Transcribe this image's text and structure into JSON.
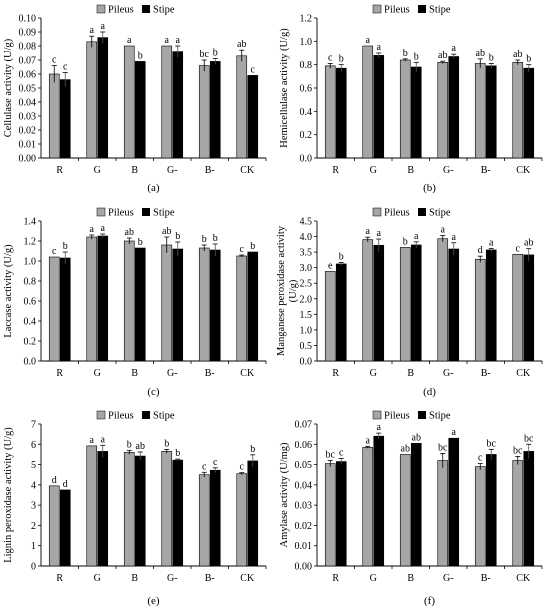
{
  "legend": {
    "pileus": "Pileus",
    "stipe": "Stipe"
  },
  "colors": {
    "pileus": "#a6a6a6",
    "stipe": "#000000",
    "axis": "#000000"
  },
  "chart_data": [
    {
      "type": "bar",
      "panel": "(a)",
      "ylabel": "Cellulase activity (U/g)",
      "ylim": [
        0,
        0.1
      ],
      "ytick_step": 0.01,
      "ytick_decimals": 2,
      "categories": [
        "R",
        "G",
        "B",
        "G-",
        "B-",
        "CK"
      ],
      "series": [
        {
          "name": "Pileus",
          "values": [
            0.06,
            0.083,
            0.08,
            0.08,
            0.066,
            0.073
          ],
          "errors": [
            0.006,
            0.004,
            0.0,
            0.0,
            0.004,
            0.004
          ],
          "letters": [
            "c",
            "a",
            "a",
            "a",
            "bc",
            "ab"
          ]
        },
        {
          "name": "Stipe",
          "values": [
            0.056,
            0.086,
            0.069,
            0.076,
            0.069,
            0.059
          ],
          "errors": [
            0.005,
            0.004,
            0.0,
            0.004,
            0.002,
            0.0
          ],
          "letters": [
            "c",
            "a",
            "b",
            "a",
            "b",
            "c"
          ]
        }
      ]
    },
    {
      "type": "bar",
      "panel": "(b)",
      "ylabel": "Hemicellulase activity (U/g)",
      "ylim": [
        0,
        1.2
      ],
      "ytick_step": 0.2,
      "ytick_decimals": 1,
      "categories": [
        "R",
        "G",
        "B",
        "G-",
        "B-",
        "CK"
      ],
      "series": [
        {
          "name": "Pileus",
          "values": [
            0.79,
            0.96,
            0.84,
            0.82,
            0.81,
            0.82
          ],
          "errors": [
            0.02,
            0.0,
            0.01,
            0.01,
            0.04,
            0.02
          ],
          "letters": [
            "c",
            "a",
            "b",
            "ab",
            "ab",
            "ab"
          ]
        },
        {
          "name": "Stipe",
          "values": [
            0.77,
            0.88,
            0.78,
            0.87,
            0.79,
            0.77
          ],
          "errors": [
            0.03,
            0.02,
            0.04,
            0.02,
            0.02,
            0.03
          ],
          "letters": [
            "b",
            "a",
            "b",
            "a",
            "b",
            "b"
          ]
        }
      ]
    },
    {
      "type": "bar",
      "panel": "(c)",
      "ylabel": "Laccase activity (U/g)",
      "ylim": [
        0,
        1.4
      ],
      "ytick_step": 0.2,
      "ytick_decimals": 1,
      "categories": [
        "R",
        "G",
        "B",
        "G-",
        "B-",
        "CK"
      ],
      "series": [
        {
          "name": "Pileus",
          "values": [
            1.04,
            1.24,
            1.2,
            1.16,
            1.13,
            1.05
          ],
          "errors": [
            0.0,
            0.02,
            0.03,
            0.08,
            0.03,
            0.01
          ],
          "letters": [
            "c",
            "a",
            "ab",
            "ab",
            "b",
            "c"
          ]
        },
        {
          "name": "Stipe",
          "values": [
            1.03,
            1.25,
            1.13,
            1.12,
            1.11,
            1.09
          ],
          "errors": [
            0.06,
            0.02,
            0.0,
            0.07,
            0.06,
            0.0
          ],
          "letters": [
            "b",
            "a",
            "b",
            "b",
            "b",
            "b"
          ]
        }
      ]
    },
    {
      "type": "bar",
      "panel": "(d)",
      "ylabel": [
        "Manganese peroxidase activity",
        "(U/g)"
      ],
      "ylim": [
        0,
        4.5
      ],
      "ytick_step": 0.5,
      "ytick_decimals": 1,
      "categories": [
        "R",
        "G",
        "B",
        "G-",
        "B-",
        "CK"
      ],
      "series": [
        {
          "name": "Pileus",
          "values": [
            2.88,
            3.9,
            3.65,
            3.93,
            3.27,
            3.43
          ],
          "errors": [
            0.0,
            0.08,
            0.0,
            0.1,
            0.1,
            0.0
          ],
          "letters": [
            "e",
            "a",
            "b",
            "a",
            "d",
            "c"
          ]
        },
        {
          "name": "Stipe",
          "values": [
            3.12,
            3.72,
            3.73,
            3.6,
            3.57,
            3.41
          ],
          "errors": [
            0.05,
            0.2,
            0.1,
            0.2,
            0.05,
            0.2
          ],
          "letters": [
            "b",
            "a",
            "a",
            "a",
            "a",
            "ab"
          ]
        }
      ]
    },
    {
      "type": "bar",
      "panel": "(e)",
      "ylabel": "Lignin peroxidase activity (U/g)",
      "ylim": [
        0,
        7
      ],
      "ytick_step": 1,
      "ytick_decimals": 0,
      "categories": [
        "R",
        "G",
        "B",
        "G-",
        "B-",
        "CK"
      ],
      "series": [
        {
          "name": "Pileus",
          "values": [
            3.95,
            5.92,
            5.6,
            5.65,
            4.5,
            4.55
          ],
          "errors": [
            0.0,
            0.0,
            0.1,
            0.1,
            0.12,
            0.05
          ],
          "letters": [
            "d",
            "a",
            "b",
            "b",
            "c",
            "c"
          ]
        },
        {
          "name": "Stipe",
          "values": [
            3.75,
            5.65,
            5.42,
            5.22,
            4.72,
            5.18
          ],
          "errors": [
            0.0,
            0.3,
            0.2,
            0.05,
            0.12,
            0.3
          ],
          "letters": [
            "d",
            "a",
            "ab",
            "b",
            "c",
            "b"
          ]
        }
      ]
    },
    {
      "type": "bar",
      "panel": "(f)",
      "ylabel": "Amylase activity (U/mg)",
      "ylim": [
        0,
        0.07
      ],
      "ytick_step": 0.01,
      "ytick_decimals": 2,
      "categories": [
        "R",
        "G",
        "B",
        "G-",
        "B-",
        "CK"
      ],
      "series": [
        {
          "name": "Pileus",
          "values": [
            0.0505,
            0.0585,
            0.055,
            0.052,
            0.049,
            0.052
          ],
          "errors": [
            0.0015,
            0.0005,
            0.0,
            0.0035,
            0.0015,
            0.002
          ],
          "letters": [
            "bc",
            "a",
            "ab",
            "bc",
            "c",
            "bc"
          ]
        },
        {
          "name": "Stipe",
          "values": [
            0.0515,
            0.064,
            0.0605,
            0.063,
            0.055,
            0.0565
          ],
          "errors": [
            0.0015,
            0.0015,
            0.0,
            0.0,
            0.0025,
            0.0035
          ],
          "letters": [
            "c",
            "a",
            "ab",
            "a",
            "bc",
            "bc"
          ]
        }
      ]
    }
  ]
}
